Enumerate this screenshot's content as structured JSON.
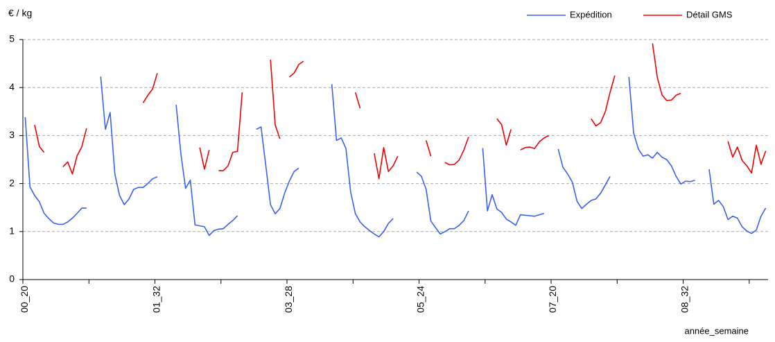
{
  "chart_data": {
    "type": "line",
    "y_label": "€ / kg",
    "x_label": "année_semaine",
    "legend": "top-right",
    "grid": true,
    "ylim": [
      0,
      5
    ],
    "yticks": [
      0,
      1,
      2,
      3,
      4,
      5
    ],
    "categories": [
      "00_20",
      null,
      null,
      null,
      null,
      null,
      null,
      null,
      null,
      null,
      null,
      null,
      null,
      null,
      null,
      null,
      null,
      null,
      null,
      null,
      null,
      null,
      null,
      null,
      null,
      null,
      null,
      null,
      "01_32",
      null,
      null,
      null,
      null,
      null,
      null,
      null,
      null,
      null,
      null,
      null,
      null,
      null,
      null,
      null,
      null,
      null,
      null,
      null,
      null,
      null,
      null,
      null,
      null,
      null,
      null,
      null,
      "03_28",
      null,
      null,
      null,
      null,
      null,
      null,
      null,
      null,
      null,
      null,
      null,
      null,
      null,
      null,
      null,
      null,
      null,
      null,
      null,
      null,
      null,
      null,
      null,
      null,
      null,
      null,
      null,
      "05_24",
      null,
      null,
      null,
      null,
      null,
      null,
      null,
      null,
      null,
      null,
      null,
      null,
      null,
      null,
      null,
      null,
      null,
      null,
      null,
      null,
      null,
      null,
      null,
      null,
      null,
      null,
      null,
      "07_20",
      null,
      null,
      null,
      null,
      null,
      null,
      null,
      null,
      null,
      null,
      null,
      null,
      null,
      null,
      null,
      null,
      null,
      null,
      null,
      null,
      null,
      null,
      null,
      null,
      null,
      null,
      null,
      "08_32",
      null,
      null,
      null,
      null,
      null,
      null,
      null,
      null,
      null,
      null,
      null,
      null,
      null,
      null,
      null,
      null,
      null
    ],
    "series": [
      {
        "name": "Expédition",
        "color": "#3a5ff2",
        "values": [
          3.38,
          1.93,
          1.75,
          1.62,
          1.38,
          1.27,
          1.18,
          1.15,
          1.15,
          1.2,
          1.28,
          1.38,
          1.49,
          1.49,
          null,
          null,
          4.23,
          3.13,
          3.48,
          2.2,
          1.75,
          1.56,
          1.68,
          1.88,
          1.92,
          1.92,
          2.0,
          2.1,
          2.14,
          null,
          null,
          null,
          3.64,
          2.62,
          1.9,
          2.07,
          1.14,
          1.12,
          1.1,
          0.92,
          1.02,
          1.05,
          1.06,
          1.15,
          1.23,
          1.33,
          null,
          null,
          null,
          3.13,
          3.18,
          2.38,
          1.56,
          1.37,
          1.48,
          1.8,
          2.05,
          2.25,
          2.32,
          null,
          null,
          null,
          null,
          null,
          null,
          4.07,
          2.9,
          2.95,
          2.73,
          1.82,
          1.37,
          1.2,
          1.1,
          1.02,
          0.95,
          0.89,
          1.0,
          1.17,
          1.27,
          null,
          null,
          null,
          null,
          2.24,
          2.15,
          1.88,
          1.22,
          1.08,
          0.95,
          1.0,
          1.06,
          1.06,
          1.13,
          1.23,
          1.43,
          null,
          null,
          2.74,
          1.43,
          1.77,
          1.47,
          1.4,
          1.26,
          1.2,
          1.13,
          1.35,
          1.34,
          1.33,
          1.32,
          1.35,
          1.38,
          null,
          null,
          2.72,
          2.34,
          2.2,
          2.03,
          1.63,
          1.48,
          1.57,
          1.65,
          1.68,
          1.8,
          1.97,
          2.15,
          null,
          null,
          null,
          4.22,
          3.05,
          2.72,
          2.57,
          2.6,
          2.53,
          2.65,
          2.55,
          2.5,
          2.37,
          2.15,
          1.99,
          2.05,
          2.04,
          2.07,
          null,
          null,
          2.3,
          1.57,
          1.65,
          1.52,
          1.25,
          1.32,
          1.28,
          1.1,
          1.01,
          0.96,
          1.03,
          1.32,
          1.49
        ]
      },
      {
        "name": "Détail GMS",
        "color": "#ee0000",
        "values": [
          null,
          null,
          3.22,
          2.77,
          2.65,
          null,
          null,
          null,
          2.35,
          2.45,
          2.2,
          2.58,
          2.77,
          3.15,
          null,
          null,
          null,
          null,
          null,
          null,
          null,
          null,
          null,
          null,
          null,
          3.68,
          3.84,
          3.97,
          4.3,
          null,
          null,
          null,
          null,
          null,
          null,
          null,
          null,
          2.75,
          2.3,
          2.7,
          null,
          2.27,
          2.27,
          2.37,
          2.65,
          2.67,
          3.9,
          null,
          null,
          null,
          null,
          null,
          4.58,
          3.22,
          2.93,
          null,
          4.22,
          4.3,
          4.48,
          4.55,
          null,
          null,
          null,
          null,
          null,
          null,
          null,
          null,
          null,
          null,
          3.9,
          3.57,
          null,
          null,
          2.63,
          2.1,
          2.75,
          2.25,
          2.37,
          2.57,
          null,
          null,
          null,
          null,
          null,
          2.9,
          2.57,
          null,
          null,
          2.44,
          2.39,
          2.4,
          2.49,
          2.7,
          2.97,
          null,
          null,
          null,
          null,
          null,
          3.35,
          3.23,
          2.8,
          3.13,
          null,
          2.7,
          2.75,
          2.76,
          2.73,
          2.87,
          2.95,
          3.0,
          null,
          null,
          null,
          null,
          null,
          null,
          null,
          null,
          3.35,
          3.2,
          3.27,
          3.5,
          3.9,
          4.25,
          null,
          null,
          null,
          null,
          null,
          null,
          null,
          4.92,
          4.22,
          3.85,
          3.73,
          3.74,
          3.84,
          3.88,
          null,
          null,
          null,
          null,
          null,
          null,
          null,
          null,
          null,
          2.88,
          2.55,
          2.76,
          2.48,
          2.37,
          2.22,
          2.8,
          2.4,
          2.68
        ]
      }
    ]
  }
}
